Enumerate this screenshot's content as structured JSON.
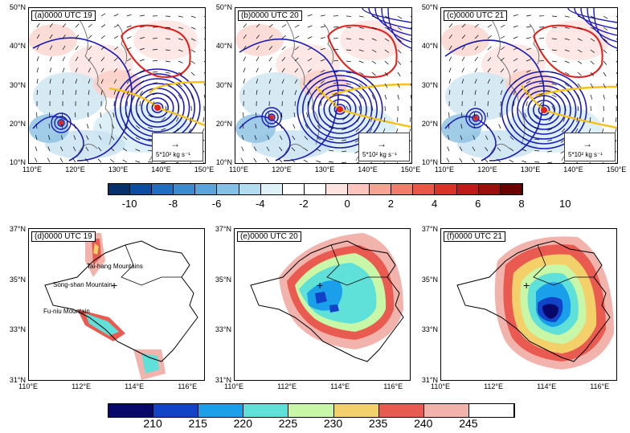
{
  "top_panels": [
    {
      "title": "(a)0000 UTC 19",
      "vector_label": "5*10² kg s⁻¹"
    },
    {
      "title": "(b)0000 UTC 20",
      "vector_label": "5*10² kg s⁻¹"
    },
    {
      "title": "(c)0000 UTC 21",
      "vector_label": "5*10² kg s⁻¹"
    }
  ],
  "top_axes": {
    "lat_ticks": [
      "50°N",
      "40°N",
      "30°N",
      "20°N",
      "10°N"
    ],
    "lon_ticks": [
      "110°E",
      "120°E",
      "130°E",
      "140°E",
      "150°E"
    ]
  },
  "colorbar1": {
    "labels": [
      "-10",
      "-8",
      "-6",
      "-4",
      "-2",
      "0",
      "2",
      "4",
      "6",
      "8",
      "10"
    ],
    "colors": [
      "#08306b",
      "#0b4da1",
      "#1f6ec1",
      "#3a8bd0",
      "#5ba4dc",
      "#85c1e6",
      "#b4dcf0",
      "#def0f8",
      "#ffffff",
      "#ffffff",
      "#fde2e0",
      "#fbc5bd",
      "#f7a394",
      "#f27d6a",
      "#ea5746",
      "#d93328",
      "#be1a1a",
      "#9b0e0e",
      "#6b0000"
    ]
  },
  "bottom_panels": [
    {
      "title": "(d)0000 UTC 19",
      "labels": {
        "taihang": "Tai-hang Mountains",
        "songshan": "Song-shan Mountain",
        "funiu": "Fu-niu Mountain"
      }
    },
    {
      "title": "(e)0000 UTC 20"
    },
    {
      "title": "(f)0000 UTC 21"
    }
  ],
  "bottom_axes": {
    "lat_ticks": [
      "37°N",
      "35°N",
      "33°N",
      "31°N"
    ],
    "lon_ticks": [
      "110°E",
      "112°E",
      "114°E",
      "116°E"
    ]
  },
  "colorbar2": {
    "labels": [
      "210",
      "215",
      "220",
      "225",
      "230",
      "235",
      "240",
      "245"
    ],
    "colors": [
      "#08086b",
      "#1242c8",
      "#1aa0ea",
      "#5fe0d8",
      "#c9f7a8",
      "#f3d06a",
      "#e95b50",
      "#f3b3ad",
      "#ffffff"
    ]
  }
}
